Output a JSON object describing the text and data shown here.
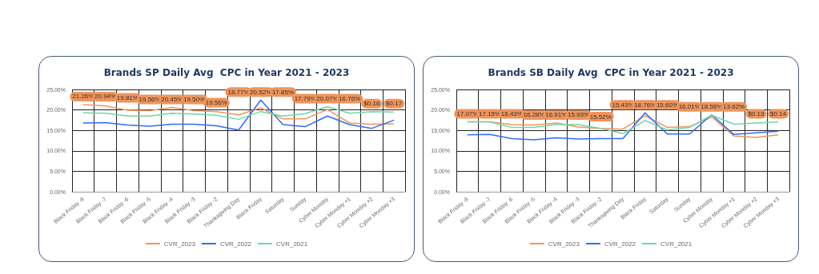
{
  "chart_data": [
    {
      "type": "line",
      "title": "Brands SP Daily Avg  CPC in Year 2021 - 2023",
      "categories": [
        "Black Friday -8",
        "Black Friday -7",
        "Black Friday -6",
        "Black Friday -5",
        "Black Friday -4",
        "Black Friday -3",
        "Black Friday -2",
        "Thanksgiving Day",
        "Black Friday",
        "Saturday",
        "Sunday",
        "Cyber Monday",
        "Cyber Monday +1",
        "Cyber Monday +2",
        "Cyber Monday +3"
      ],
      "series": [
        {
          "name": "CVR_2023",
          "color": "#f0945a",
          "values": [
            21.3,
            21.0,
            19.9,
            19.8,
            20.6,
            19.8,
            19.6,
            18.8,
            20.5,
            17.8,
            17.8,
            20.1,
            16.8,
            16.5,
            16.6
          ]
        },
        {
          "name": "CVR_2022",
          "color": "#2f6bff",
          "values": [
            16.8,
            16.9,
            16.3,
            16.0,
            16.5,
            16.5,
            16.1,
            15.1,
            22.4,
            16.4,
            15.9,
            18.5,
            16.4,
            15.5,
            17.5
          ]
        },
        {
          "name": "CVR_2021",
          "color": "#6fd6a8",
          "values": [
            19.3,
            19.2,
            18.5,
            18.5,
            19.2,
            19.0,
            18.7,
            17.7,
            19.6,
            18.5,
            19.1,
            20.8,
            19.2,
            19.6,
            19.5
          ]
        }
      ],
      "annotations": [
        "21.26%",
        "20.94%",
        "19.81%",
        "19.56%",
        "20.45%",
        "19.50%",
        "19.56%",
        "18.77%",
        "20.52%",
        "17.85%",
        "17.79%",
        "20.07%",
        "16.76%",
        "$0.16",
        "$0.17"
      ],
      "ylim": [
        0,
        25
      ],
      "yticks": [
        {
          "value": 0,
          "label": "0.00%"
        },
        {
          "value": 5,
          "label": "5.00%"
        },
        {
          "value": 10,
          "label": "10.00%"
        },
        {
          "value": 15,
          "label": "15.00%"
        },
        {
          "value": 20,
          "label": "20.00%"
        },
        {
          "value": 25,
          "label": "25.00%"
        }
      ],
      "grid": true,
      "legend": "bottom",
      "marker": "none"
    },
    {
      "type": "line",
      "title": "Brands SB Daily Avg  CPC in Year 2021 - 2023",
      "categories": [
        "Black Friday -8",
        "Black Friday -7",
        "Black Friday -6",
        "Black Friday -5",
        "Black Friday -4",
        "Black Friday -3",
        "Black Friday -2",
        "Thanksgiving Day",
        "Black Friday",
        "Saturday",
        "Sunday",
        "Cyber Monday",
        "Cyber Monday +1",
        "Cyber Monday +2",
        "Cyber Monday +3"
      ],
      "series": [
        {
          "name": "CVR_2023",
          "color": "#f0945a",
          "values": [
            17.1,
            17.1,
            16.4,
            16.3,
            16.8,
            15.8,
            15.5,
            15.3,
            18.6,
            15.7,
            15.9,
            18.3,
            13.6,
            13.3,
            13.9
          ]
        },
        {
          "name": "CVR_2022",
          "color": "#2f6bff",
          "values": [
            13.9,
            14.0,
            13.0,
            12.7,
            13.2,
            12.9,
            13.0,
            13.0,
            19.3,
            14.1,
            14.1,
            18.8,
            14.0,
            14.4,
            14.8
          ]
        },
        {
          "name": "CVR_2021",
          "color": "#6fd6a8",
          "values": [
            17.1,
            17.1,
            15.7,
            15.7,
            16.4,
            16.4,
            15.5,
            14.2,
            17.4,
            15.1,
            15.7,
            18.7,
            16.5,
            16.8,
            17.1
          ]
        }
      ],
      "annotations": [
        "17.07%",
        "17.15%",
        "16.43%",
        "16.28%",
        "16.91%",
        "15.93%",
        "15.52%",
        "15.43%",
        "18.76%",
        "15.60%",
        "16.01%",
        "18.56%",
        "13.62%",
        "$0.13",
        "$0.14"
      ],
      "ylim": [
        0,
        25
      ],
      "yticks": [
        {
          "value": 0,
          "label": "0.00%"
        },
        {
          "value": 5,
          "label": "5.00%"
        },
        {
          "value": 10,
          "label": "10.00%"
        },
        {
          "value": 15,
          "label": "15.00%"
        },
        {
          "value": 20,
          "label": "20.00%"
        },
        {
          "value": 25,
          "label": "25.00%"
        }
      ],
      "grid": true,
      "legend": "bottom",
      "marker": "none"
    }
  ]
}
